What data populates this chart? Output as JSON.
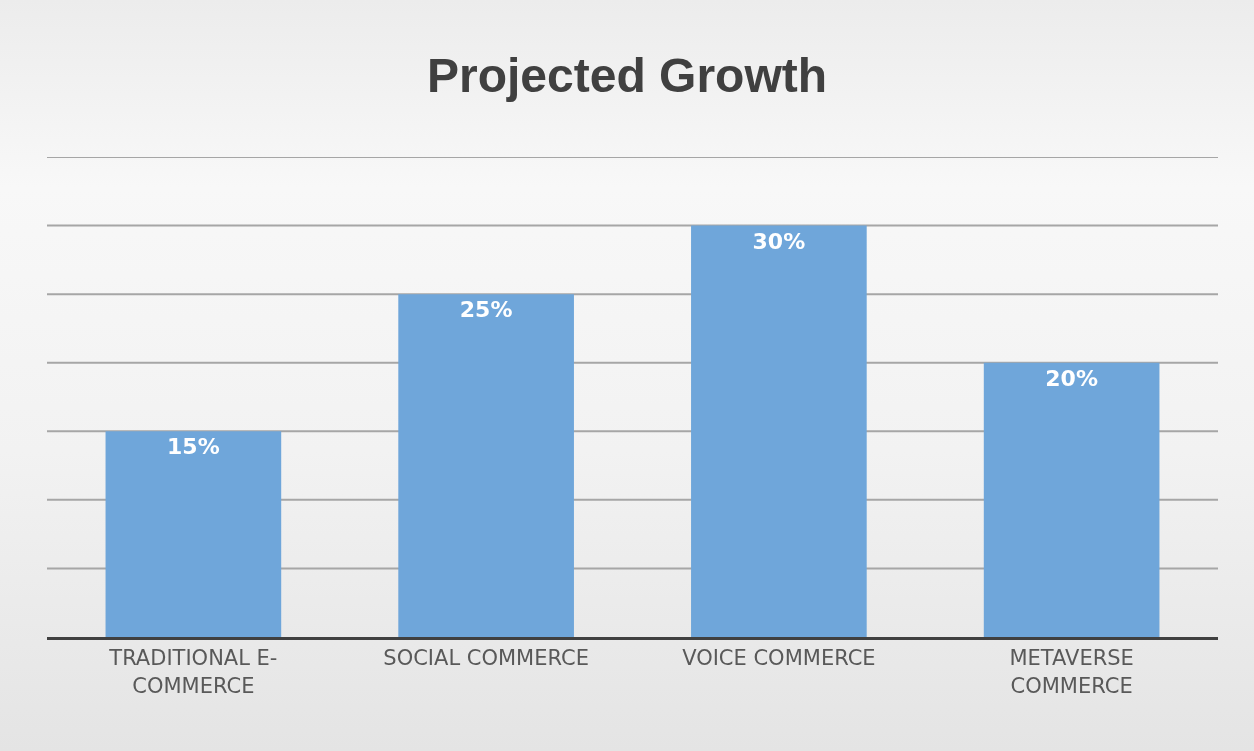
{
  "chart_data": {
    "type": "bar",
    "title": "Projected Growth",
    "categories": [
      "TRADITIONAL E-COMMERCE",
      "SOCIAL COMMERCE",
      "VOICE COMMERCE",
      "METAVERSE COMMERCE"
    ],
    "values": [
      15,
      25,
      30,
      20
    ],
    "value_labels": [
      "15%",
      "25%",
      "30%",
      "20%"
    ],
    "color": "#6fa6da",
    "ylim": [
      0,
      35
    ],
    "yticks": [
      {
        "value": 0,
        "label": null
      },
      {
        "value": 5,
        "label": null
      },
      {
        "value": 10,
        "label": null
      },
      {
        "value": 15,
        "label": null
      },
      {
        "value": 20,
        "label": null
      },
      {
        "value": 25,
        "label": null
      },
      {
        "value": 30,
        "label": null
      },
      {
        "value": 35,
        "label": null
      }
    ],
    "tick_labels": "x",
    "grid": "y"
  }
}
